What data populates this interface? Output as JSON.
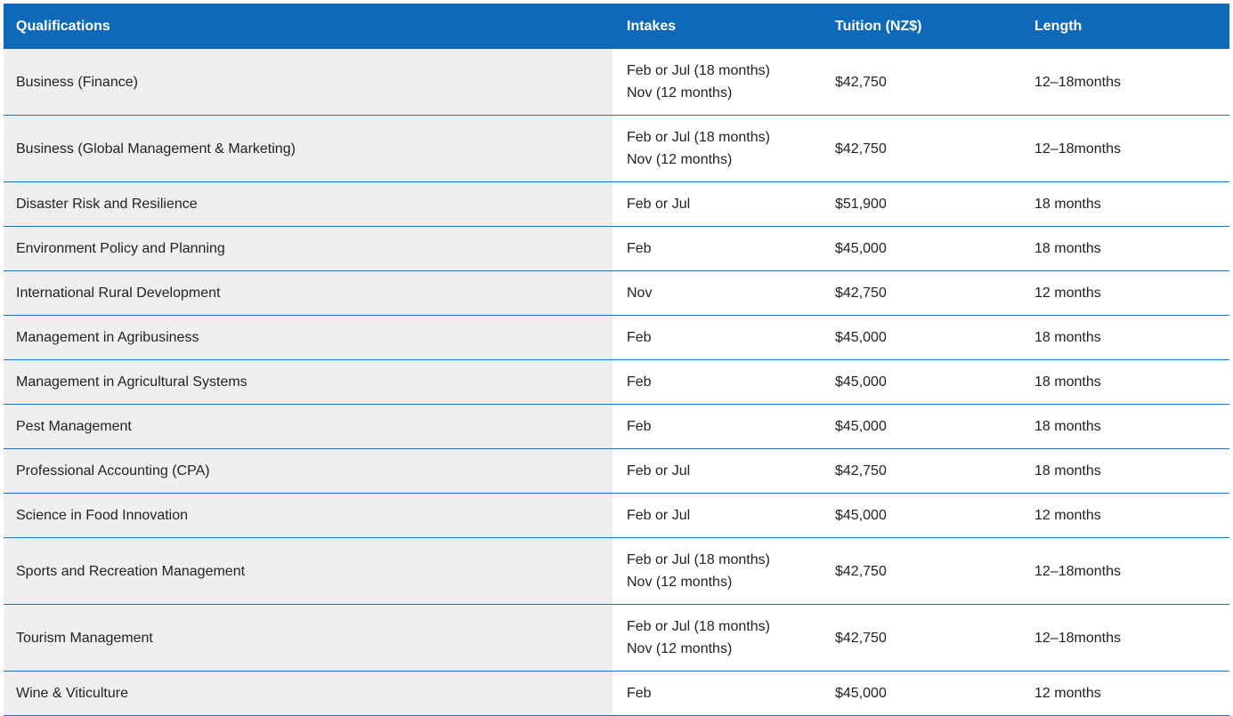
{
  "header": {
    "qualifications": "Qualifications",
    "intakes": "Intakes",
    "tuition": "Tuition (NZ$)",
    "length": "Length"
  },
  "rows": [
    {
      "qualification": "Business (Finance)",
      "intake1": "Feb or Jul (18 months)",
      "intake2": "Nov (12 months)",
      "tuition": "$42,750",
      "length": "12–18months"
    },
    {
      "qualification": "Business (Global Management & Marketing)",
      "intake1": "Feb or Jul (18 months)",
      "intake2": "Nov (12 months)",
      "tuition": "$42,750",
      "length": "12–18months"
    },
    {
      "qualification": "Disaster Risk and Resilience",
      "intake1": "Feb or Jul",
      "intake2": "",
      "tuition": "$51,900",
      "length": "18 months"
    },
    {
      "qualification": "Environment Policy and Planning",
      "intake1": "Feb",
      "intake2": "",
      "tuition": "$45,000",
      "length": "18 months"
    },
    {
      "qualification": "International Rural Development",
      "intake1": "Nov",
      "intake2": "",
      "tuition": "$42,750",
      "length": "12 months"
    },
    {
      "qualification": "Management in Agribusiness",
      "intake1": "Feb",
      "intake2": "",
      "tuition": "$45,000",
      "length": "18 months"
    },
    {
      "qualification": "Management in Agricultural Systems",
      "intake1": "Feb",
      "intake2": "",
      "tuition": "$45,000",
      "length": "18 months"
    },
    {
      "qualification": "Pest Management",
      "intake1": "Feb",
      "intake2": "",
      "tuition": "$45,000",
      "length": "18 months"
    },
    {
      "qualification": "Professional Accounting (CPA)",
      "intake1": "Feb or Jul",
      "intake2": "",
      "tuition": "$42,750",
      "length": "18 months"
    },
    {
      "qualification": "Science in Food Innovation",
      "intake1": "Feb or Jul",
      "intake2": "",
      "tuition": "$45,000",
      "length": "12 months"
    },
    {
      "qualification": "Sports and Recreation Management",
      "intake1": "Feb or Jul (18 months)",
      "intake2": "Nov (12 months)",
      "tuition": "$42,750",
      "length": "12–18months"
    },
    {
      "qualification": "Tourism Management",
      "intake1": "Feb or Jul (18 months)",
      "intake2": "Nov (12 months)",
      "tuition": "$42,750",
      "length": "12–18months"
    },
    {
      "qualification": "Wine & Viticulture",
      "intake1": "Feb",
      "intake2": "",
      "tuition": "$45,000",
      "length": "12 months"
    }
  ],
  "colors": {
    "header_bg": "#0e6ab8",
    "row_border": "#1b6fbd",
    "first_col_bg": "#efefef"
  }
}
